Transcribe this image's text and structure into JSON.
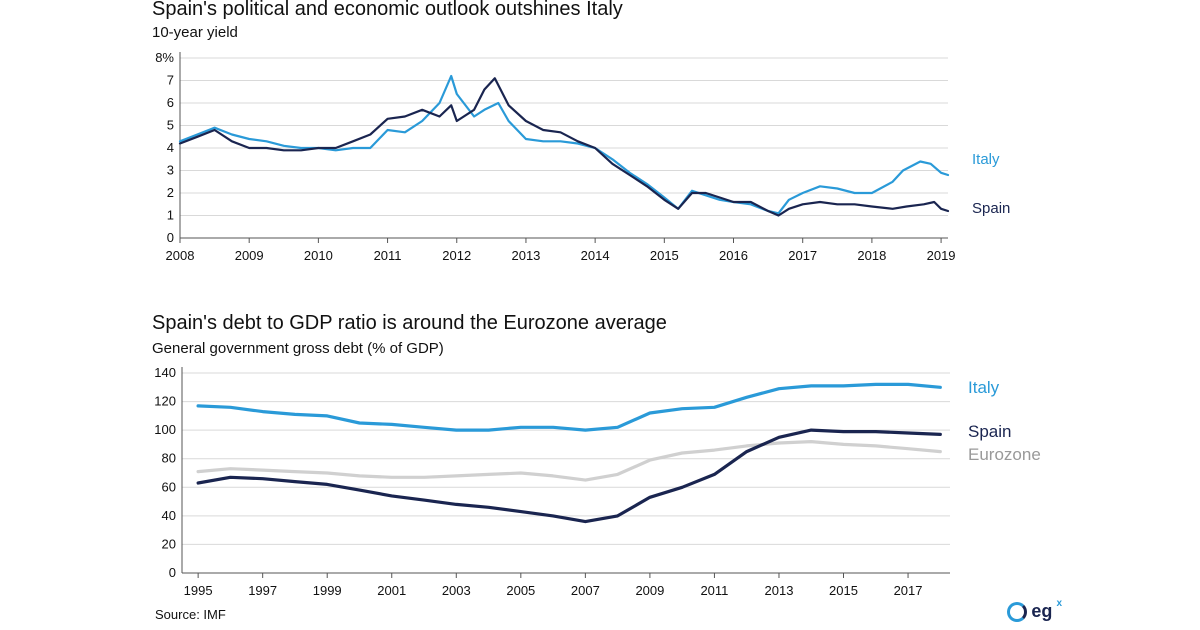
{
  "chart_data": [
    {
      "type": "line",
      "title": "Spain's political and economic outlook outshines Italy",
      "subtitle": "10-year yield",
      "ylim": [
        0,
        8
      ],
      "y_ticks": [
        "0",
        "1",
        "2",
        "3",
        "4",
        "5",
        "6",
        "7",
        "8%"
      ],
      "x_ticks": [
        "2008",
        "2009",
        "2010",
        "2011",
        "2012",
        "2013",
        "2014",
        "2015",
        "2016",
        "2017",
        "2018",
        "2019"
      ],
      "grid": true,
      "legend": "right (inline labels)",
      "series": [
        {
          "name": "Italy",
          "color": "#2a9ad8",
          "points": [
            [
              2008.0,
              4.3
            ],
            [
              2008.25,
              4.6
            ],
            [
              2008.5,
              4.9
            ],
            [
              2008.75,
              4.6
            ],
            [
              2009.0,
              4.4
            ],
            [
              2009.25,
              4.3
            ],
            [
              2009.5,
              4.1
            ],
            [
              2009.75,
              4.0
            ],
            [
              2010.0,
              4.0
            ],
            [
              2010.25,
              3.9
            ],
            [
              2010.5,
              4.0
            ],
            [
              2010.75,
              4.0
            ],
            [
              2011.0,
              4.8
            ],
            [
              2011.25,
              4.7
            ],
            [
              2011.5,
              5.2
            ],
            [
              2011.75,
              6.0
            ],
            [
              2011.92,
              7.2
            ],
            [
              2012.0,
              6.4
            ],
            [
              2012.25,
              5.4
            ],
            [
              2012.4,
              5.7
            ],
            [
              2012.6,
              6.0
            ],
            [
              2012.75,
              5.2
            ],
            [
              2013.0,
              4.4
            ],
            [
              2013.25,
              4.3
            ],
            [
              2013.5,
              4.3
            ],
            [
              2013.75,
              4.2
            ],
            [
              2014.0,
              4.0
            ],
            [
              2014.25,
              3.5
            ],
            [
              2014.5,
              2.9
            ],
            [
              2014.75,
              2.4
            ],
            [
              2015.0,
              1.8
            ],
            [
              2015.2,
              1.3
            ],
            [
              2015.4,
              2.1
            ],
            [
              2015.6,
              1.9
            ],
            [
              2015.8,
              1.7
            ],
            [
              2016.0,
              1.6
            ],
            [
              2016.25,
              1.5
            ],
            [
              2016.5,
              1.2
            ],
            [
              2016.65,
              1.1
            ],
            [
              2016.8,
              1.7
            ],
            [
              2017.0,
              2.0
            ],
            [
              2017.25,
              2.3
            ],
            [
              2017.5,
              2.2
            ],
            [
              2017.75,
              2.0
            ],
            [
              2018.0,
              2.0
            ],
            [
              2018.3,
              2.5
            ],
            [
              2018.45,
              3.0
            ],
            [
              2018.7,
              3.4
            ],
            [
              2018.85,
              3.3
            ],
            [
              2019.0,
              2.9
            ],
            [
              2019.1,
              2.8
            ]
          ]
        },
        {
          "name": "Spain",
          "color": "#1a2550",
          "points": [
            [
              2008.0,
              4.2
            ],
            [
              2008.25,
              4.5
            ],
            [
              2008.5,
              4.8
            ],
            [
              2008.75,
              4.3
            ],
            [
              2009.0,
              4.0
            ],
            [
              2009.25,
              4.0
            ],
            [
              2009.5,
              3.9
            ],
            [
              2009.75,
              3.9
            ],
            [
              2010.0,
              4.0
            ],
            [
              2010.25,
              4.0
            ],
            [
              2010.5,
              4.3
            ],
            [
              2010.75,
              4.6
            ],
            [
              2011.0,
              5.3
            ],
            [
              2011.25,
              5.4
            ],
            [
              2011.5,
              5.7
            ],
            [
              2011.75,
              5.4
            ],
            [
              2011.92,
              5.9
            ],
            [
              2012.0,
              5.2
            ],
            [
              2012.25,
              5.7
            ],
            [
              2012.4,
              6.6
            ],
            [
              2012.55,
              7.1
            ],
            [
              2012.75,
              5.9
            ],
            [
              2013.0,
              5.2
            ],
            [
              2013.25,
              4.8
            ],
            [
              2013.5,
              4.7
            ],
            [
              2013.75,
              4.3
            ],
            [
              2014.0,
              4.0
            ],
            [
              2014.25,
              3.3
            ],
            [
              2014.5,
              2.8
            ],
            [
              2014.75,
              2.3
            ],
            [
              2015.0,
              1.7
            ],
            [
              2015.2,
              1.3
            ],
            [
              2015.4,
              2.0
            ],
            [
              2015.6,
              2.0
            ],
            [
              2015.8,
              1.8
            ],
            [
              2016.0,
              1.6
            ],
            [
              2016.25,
              1.6
            ],
            [
              2016.5,
              1.2
            ],
            [
              2016.65,
              1.0
            ],
            [
              2016.8,
              1.3
            ],
            [
              2017.0,
              1.5
            ],
            [
              2017.25,
              1.6
            ],
            [
              2017.5,
              1.5
            ],
            [
              2017.75,
              1.5
            ],
            [
              2018.0,
              1.4
            ],
            [
              2018.3,
              1.3
            ],
            [
              2018.5,
              1.4
            ],
            [
              2018.75,
              1.5
            ],
            [
              2018.9,
              1.6
            ],
            [
              2019.0,
              1.3
            ],
            [
              2019.1,
              1.2
            ]
          ]
        }
      ]
    },
    {
      "type": "line",
      "title": "Spain's debt to GDP ratio is around the Eurozone average",
      "subtitle": "General government gross debt (% of GDP)",
      "ylim": [
        0,
        140
      ],
      "y_ticks": [
        "0",
        "20",
        "40",
        "60",
        "80",
        "100",
        "120",
        "140"
      ],
      "x_ticks": [
        "1995",
        "1997",
        "1999",
        "2001",
        "2003",
        "2005",
        "2007",
        "2009",
        "2011",
        "2013",
        "2015",
        "2017"
      ],
      "grid": true,
      "legend": "right (inline labels)",
      "series": [
        {
          "name": "Italy",
          "color": "#2a9ad8",
          "points": [
            [
              1995,
              117
            ],
            [
              1996,
              116
            ],
            [
              1997,
              113
            ],
            [
              1998,
              111
            ],
            [
              1999,
              110
            ],
            [
              2000,
              105
            ],
            [
              2001,
              104
            ],
            [
              2002,
              102
            ],
            [
              2003,
              100
            ],
            [
              2004,
              100
            ],
            [
              2005,
              102
            ],
            [
              2006,
              102
            ],
            [
              2007,
              100
            ],
            [
              2008,
              102
            ],
            [
              2009,
              112
            ],
            [
              2010,
              115
            ],
            [
              2011,
              116
            ],
            [
              2012,
              123
            ],
            [
              2013,
              129
            ],
            [
              2014,
              131
            ],
            [
              2015,
              131
            ],
            [
              2016,
              132
            ],
            [
              2017,
              132
            ],
            [
              2018,
              130
            ]
          ]
        },
        {
          "name": "Spain",
          "color": "#1a2550",
          "points": [
            [
              1995,
              63
            ],
            [
              1996,
              67
            ],
            [
              1997,
              66
            ],
            [
              1998,
              64
            ],
            [
              1999,
              62
            ],
            [
              2000,
              58
            ],
            [
              2001,
              54
            ],
            [
              2002,
              51
            ],
            [
              2003,
              48
            ],
            [
              2004,
              46
            ],
            [
              2005,
              43
            ],
            [
              2006,
              40
            ],
            [
              2007,
              36
            ],
            [
              2008,
              40
            ],
            [
              2009,
              53
            ],
            [
              2010,
              60
            ],
            [
              2011,
              69
            ],
            [
              2012,
              85
            ],
            [
              2013,
              95
            ],
            [
              2014,
              100
            ],
            [
              2015,
              99
            ],
            [
              2016,
              99
            ],
            [
              2017,
              98
            ],
            [
              2018,
              97
            ]
          ]
        },
        {
          "name": "Eurozone",
          "color": "#d0d0d0",
          "points": [
            [
              1995,
              71
            ],
            [
              1996,
              73
            ],
            [
              1997,
              72
            ],
            [
              1998,
              71
            ],
            [
              1999,
              70
            ],
            [
              2000,
              68
            ],
            [
              2001,
              67
            ],
            [
              2002,
              67
            ],
            [
              2003,
              68
            ],
            [
              2004,
              69
            ],
            [
              2005,
              70
            ],
            [
              2006,
              68
            ],
            [
              2007,
              65
            ],
            [
              2008,
              69
            ],
            [
              2009,
              79
            ],
            [
              2010,
              84
            ],
            [
              2011,
              86
            ],
            [
              2012,
              89
            ],
            [
              2013,
              91
            ],
            [
              2014,
              92
            ],
            [
              2015,
              90
            ],
            [
              2016,
              89
            ],
            [
              2017,
              87
            ],
            [
              2018,
              85
            ]
          ]
        }
      ]
    }
  ],
  "footer": {
    "source": "Source: IMF",
    "logo_text": "eg",
    "logo_sup": "x"
  }
}
